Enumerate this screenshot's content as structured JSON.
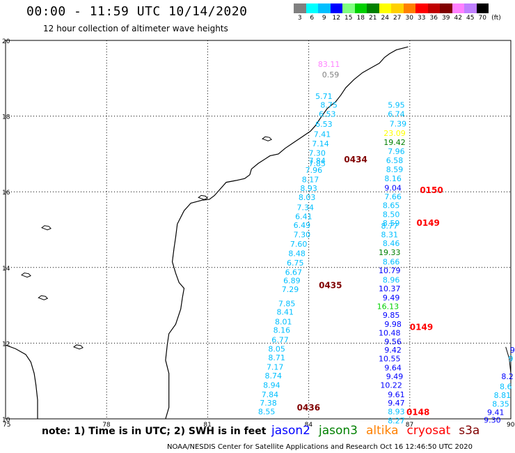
{
  "header": {
    "title": "00:00 - 11:59 UTC 10/14/2020",
    "subtitle": "12 hour collection of altimeter wave heights"
  },
  "legend": {
    "unit": "(ft)",
    "bins": [
      {
        "label": "3",
        "color": "#808080"
      },
      {
        "label": "6",
        "color": "#00ffff"
      },
      {
        "label": "9",
        "color": "#00bfff"
      },
      {
        "label": "12",
        "color": "#0000ff"
      },
      {
        "label": "15",
        "color": "#80ff80"
      },
      {
        "label": "18",
        "color": "#00d000"
      },
      {
        "label": "21",
        "color": "#008000"
      },
      {
        "label": "24",
        "color": "#ffff00"
      },
      {
        "label": "27",
        "color": "#ffd000"
      },
      {
        "label": "30",
        "color": "#ff8000"
      },
      {
        "label": "33",
        "color": "#ff0000"
      },
      {
        "label": "36",
        "color": "#c00000"
      },
      {
        "label": "39",
        "color": "#800000"
      },
      {
        "label": "42",
        "color": "#ff80ff"
      },
      {
        "label": "45",
        "color": "#c080ff"
      },
      {
        "label": "70",
        "color": "#000000"
      }
    ]
  },
  "axes": {
    "lon_ticks": [
      "75",
      "78",
      "81",
      "84",
      "87",
      "90"
    ],
    "lat_ticks": [
      "20",
      "18",
      "16",
      "14",
      "12",
      "10"
    ]
  },
  "tracks": [
    {
      "label": "0434",
      "lon": 85.05,
      "lat": 16.78,
      "color": "#800000"
    },
    {
      "label": "0150",
      "lon": 87.3,
      "lat": 15.97,
      "color": "#ff0000"
    },
    {
      "label": "0149",
      "lon": 87.2,
      "lat": 15.1,
      "color": "#ff0000"
    },
    {
      "label": "0435",
      "lon": 84.3,
      "lat": 13.45,
      "color": "#800000"
    },
    {
      "label": "0149",
      "lon": 87.0,
      "lat": 12.35,
      "color": "#ff0000"
    },
    {
      "label": "0436",
      "lon": 83.65,
      "lat": 10.22,
      "color": "#800000"
    },
    {
      "label": "0148",
      "lon": 86.9,
      "lat": 10.1,
      "color": "#ff0000"
    }
  ],
  "waves": [
    {
      "v": "83.11",
      "lon": 84.6,
      "lat": 19.3,
      "c": "#ff80ff"
    },
    {
      "v": "0.59",
      "lon": 84.65,
      "lat": 19.02,
      "c": "#808080"
    },
    {
      "v": "5.71",
      "lon": 84.45,
      "lat": 18.45,
      "c": "#00bfff"
    },
    {
      "v": "8.75",
      "lon": 84.6,
      "lat": 18.22,
      "c": "#00bfff"
    },
    {
      "v": "6.53",
      "lon": 84.55,
      "lat": 17.98,
      "c": "#00bfff"
    },
    {
      "v": "6.53",
      "lon": 84.45,
      "lat": 17.72,
      "c": "#00bfff"
    },
    {
      "v": "7.41",
      "lon": 84.4,
      "lat": 17.45,
      "c": "#00bfff"
    },
    {
      "v": "7.14",
      "lon": 84.35,
      "lat": 17.2,
      "c": "#00bfff"
    },
    {
      "v": "7.30",
      "lon": 84.25,
      "lat": 16.95,
      "c": "#00bfff"
    },
    {
      "v": "7.84",
      "lon": 84.25,
      "lat": 16.75,
      "c": "#00bfff"
    },
    {
      "v": "7.85",
      "lon": 84.25,
      "lat": 16.68,
      "c": "#00bfff"
    },
    {
      "v": "7.96",
      "lon": 84.15,
      "lat": 16.5,
      "c": "#00bfff"
    },
    {
      "v": "8.17",
      "lon": 84.05,
      "lat": 16.25,
      "c": "#00bfff"
    },
    {
      "v": "8.93",
      "lon": 84.0,
      "lat": 16.02,
      "c": "#00bfff"
    },
    {
      "v": "8.03",
      "lon": 83.95,
      "lat": 15.78,
      "c": "#00bfff"
    },
    {
      "v": "7.34",
      "lon": 83.9,
      "lat": 15.52,
      "c": "#00bfff"
    },
    {
      "v": "6.41",
      "lon": 83.85,
      "lat": 15.28,
      "c": "#00bfff"
    },
    {
      "v": "6.49",
      "lon": 83.8,
      "lat": 15.05,
      "c": "#00bfff"
    },
    {
      "v": "7.30",
      "lon": 83.8,
      "lat": 14.8,
      "c": "#00bfff"
    },
    {
      "v": "7.60",
      "lon": 83.7,
      "lat": 14.55,
      "c": "#00bfff"
    },
    {
      "v": "8.48",
      "lon": 83.65,
      "lat": 14.3,
      "c": "#00bfff"
    },
    {
      "v": "6.75",
      "lon": 83.6,
      "lat": 14.05,
      "c": "#00bfff"
    },
    {
      "v": "6.67",
      "lon": 83.55,
      "lat": 13.8,
      "c": "#00bfff"
    },
    {
      "v": "6.89",
      "lon": 83.5,
      "lat": 13.58,
      "c": "#00bfff"
    },
    {
      "v": "7.29",
      "lon": 83.45,
      "lat": 13.35,
      "c": "#00bfff"
    },
    {
      "v": "7.85",
      "lon": 83.35,
      "lat": 12.97,
      "c": "#00bfff"
    },
    {
      "v": "8.41",
      "lon": 83.3,
      "lat": 12.75,
      "c": "#00bfff"
    },
    {
      "v": "8.01",
      "lon": 83.25,
      "lat": 12.5,
      "c": "#00bfff"
    },
    {
      "v": "8.16",
      "lon": 83.2,
      "lat": 12.27,
      "c": "#00bfff"
    },
    {
      "v": "6.77",
      "lon": 83.15,
      "lat": 12.02,
      "c": "#00bfff"
    },
    {
      "v": "8.05",
      "lon": 83.05,
      "lat": 11.78,
      "c": "#00bfff"
    },
    {
      "v": "8.71",
      "lon": 83.05,
      "lat": 11.55,
      "c": "#00bfff"
    },
    {
      "v": "7.17",
      "lon": 83.0,
      "lat": 11.3,
      "c": "#00bfff"
    },
    {
      "v": "8.74",
      "lon": 82.95,
      "lat": 11.07,
      "c": "#00bfff"
    },
    {
      "v": "8.94",
      "lon": 82.9,
      "lat": 10.82,
      "c": "#00bfff"
    },
    {
      "v": "7.84",
      "lon": 82.85,
      "lat": 10.57,
      "c": "#00bfff"
    },
    {
      "v": "7.38",
      "lon": 82.8,
      "lat": 10.35,
      "c": "#00bfff"
    },
    {
      "v": "8.55",
      "lon": 82.75,
      "lat": 10.12,
      "c": "#00bfff"
    },
    {
      "v": "5.95",
      "lon": 86.6,
      "lat": 18.22,
      "c": "#00bfff"
    },
    {
      "v": "6.74",
      "lon": 86.6,
      "lat": 17.98,
      "c": "#00bfff"
    },
    {
      "v": "7.39",
      "lon": 86.65,
      "lat": 17.73,
      "c": "#00bfff"
    },
    {
      "v": "23.09",
      "lon": 86.55,
      "lat": 17.48,
      "c": "#ffff00"
    },
    {
      "v": "19.42",
      "lon": 86.55,
      "lat": 17.24,
      "c": "#008000"
    },
    {
      "v": "7.96",
      "lon": 86.6,
      "lat": 17.0,
      "c": "#00bfff"
    },
    {
      "v": "6.58",
      "lon": 86.55,
      "lat": 16.76,
      "c": "#00bfff"
    },
    {
      "v": "8.59",
      "lon": 86.55,
      "lat": 16.52,
      "c": "#00bfff"
    },
    {
      "v": "8.16",
      "lon": 86.5,
      "lat": 16.28,
      "c": "#00bfff"
    },
    {
      "v": "9.04",
      "lon": 86.5,
      "lat": 16.03,
      "c": "#0000ff"
    },
    {
      "v": "7.66",
      "lon": 86.5,
      "lat": 15.8,
      "c": "#00bfff"
    },
    {
      "v": "8.65",
      "lon": 86.45,
      "lat": 15.57,
      "c": "#00bfff"
    },
    {
      "v": "8.50",
      "lon": 86.45,
      "lat": 15.33,
      "c": "#00bfff"
    },
    {
      "v": "8.59",
      "lon": 86.45,
      "lat": 15.1,
      "c": "#00bfff"
    },
    {
      "v": "8.77",
      "lon": 86.4,
      "lat": 15.03,
      "c": "#00bfff"
    },
    {
      "v": "8.31",
      "lon": 86.4,
      "lat": 14.8,
      "c": "#00bfff"
    },
    {
      "v": "8.46",
      "lon": 86.45,
      "lat": 14.57,
      "c": "#00bfff"
    },
    {
      "v": "19.33",
      "lon": 86.4,
      "lat": 14.33,
      "c": "#008000"
    },
    {
      "v": "8.66",
      "lon": 86.45,
      "lat": 14.08,
      "c": "#00bfff"
    },
    {
      "v": "10.79",
      "lon": 86.4,
      "lat": 13.85,
      "c": "#0000ff"
    },
    {
      "v": "8.96",
      "lon": 86.45,
      "lat": 13.6,
      "c": "#00bfff"
    },
    {
      "v": "10.37",
      "lon": 86.4,
      "lat": 13.37,
      "c": "#0000ff"
    },
    {
      "v": "9.49",
      "lon": 86.45,
      "lat": 13.13,
      "c": "#0000ff"
    },
    {
      "v": "16.13",
      "lon": 86.35,
      "lat": 12.9,
      "c": "#00d000"
    },
    {
      "v": "9.85",
      "lon": 86.45,
      "lat": 12.67,
      "c": "#0000ff"
    },
    {
      "v": "9.98",
      "lon": 86.5,
      "lat": 12.43,
      "c": "#0000ff"
    },
    {
      "v": "10.48",
      "lon": 86.4,
      "lat": 12.2,
      "c": "#0000ff"
    },
    {
      "v": "9.56",
      "lon": 86.5,
      "lat": 11.97,
      "c": "#0000ff"
    },
    {
      "v": "9.42",
      "lon": 86.5,
      "lat": 11.75,
      "c": "#0000ff"
    },
    {
      "v": "10.55",
      "lon": 86.4,
      "lat": 11.52,
      "c": "#0000ff"
    },
    {
      "v": "9.64",
      "lon": 86.5,
      "lat": 11.28,
      "c": "#0000ff"
    },
    {
      "v": "9.49",
      "lon": 86.55,
      "lat": 11.05,
      "c": "#0000ff"
    },
    {
      "v": "10.22",
      "lon": 86.45,
      "lat": 10.82,
      "c": "#0000ff"
    },
    {
      "v": "9.61",
      "lon": 86.6,
      "lat": 10.57,
      "c": "#0000ff"
    },
    {
      "v": "9.47",
      "lon": 86.6,
      "lat": 10.35,
      "c": "#0000ff"
    },
    {
      "v": "8.93",
      "lon": 86.6,
      "lat": 10.12,
      "c": "#00bfff"
    },
    {
      "v": "8.27",
      "lon": 86.6,
      "lat": 9.88,
      "c": "#00bfff"
    },
    {
      "v": "9",
      "lon": 90.05,
      "lat": 11.75,
      "c": "#0000ff"
    },
    {
      "v": "9",
      "lon": 90.0,
      "lat": 11.52,
      "c": "#00bfff"
    },
    {
      "v": "8.2",
      "lon": 89.9,
      "lat": 11.05,
      "c": "#0000ff"
    },
    {
      "v": "8.6",
      "lon": 89.85,
      "lat": 10.78,
      "c": "#00bfff"
    },
    {
      "v": "8.81",
      "lon": 89.75,
      "lat": 10.55,
      "c": "#00bfff"
    },
    {
      "v": "8.35",
      "lon": 89.7,
      "lat": 10.32,
      "c": "#00bfff"
    },
    {
      "v": "9.41",
      "lon": 89.55,
      "lat": 10.1,
      "c": "#0000ff"
    },
    {
      "v": "9.30",
      "lon": 89.45,
      "lat": 9.9,
      "c": "#0000ff"
    }
  ],
  "footer": {
    "note": "note: 1) Time is in UTC; 2) SWH is in feet",
    "credit": "NOAA/NESDIS Center for Satellite Applications and Research   Oct 16 12:46:50 UTC 2020",
    "satellites": [
      {
        "name": "jason2",
        "color": "#0000ff"
      },
      {
        "name": "jason3",
        "color": "#008000"
      },
      {
        "name": "altika",
        "color": "#ff8000"
      },
      {
        "name": "cryosat",
        "color": "#ff0000"
      },
      {
        "name": "s3a",
        "color": "#800000"
      }
    ]
  }
}
